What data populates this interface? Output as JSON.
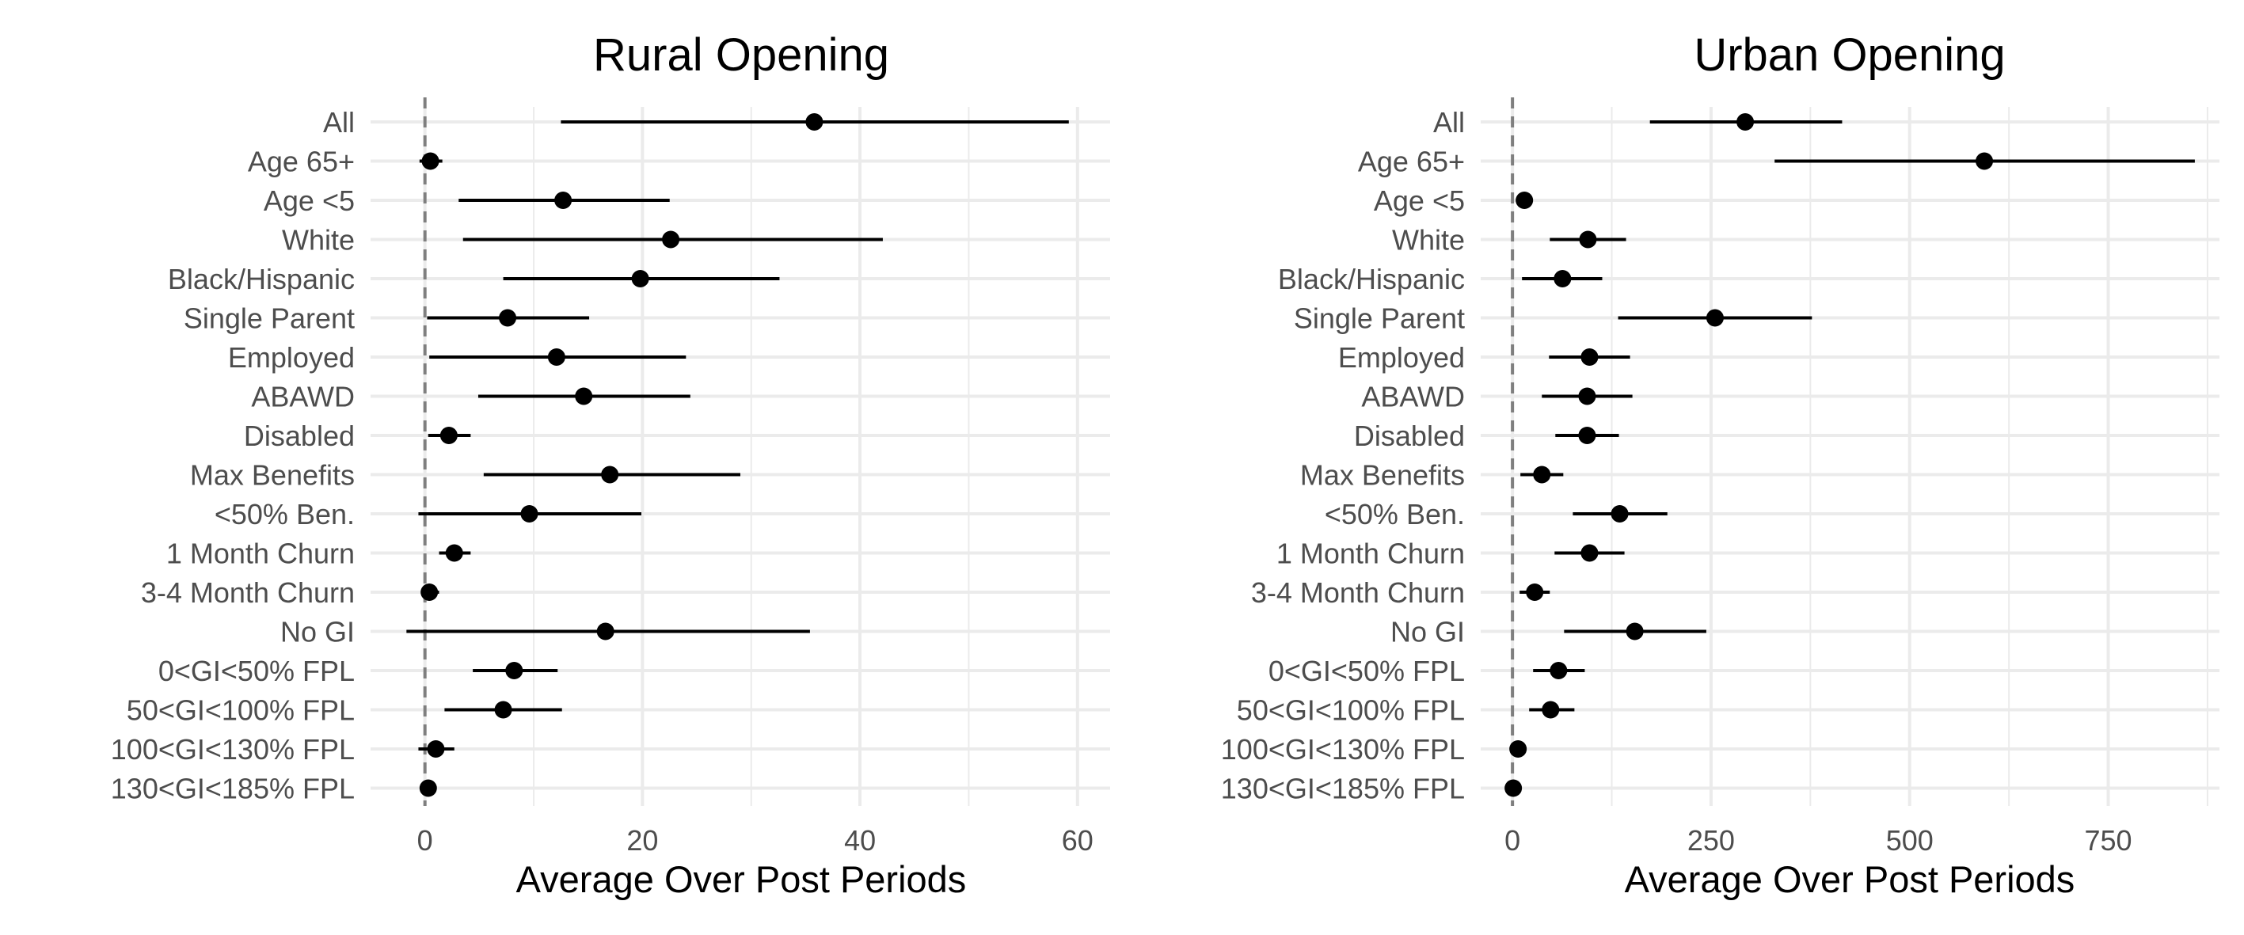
{
  "chart_data": [
    {
      "type": "scatter",
      "subtype": "point-range",
      "title": "Rural Opening",
      "xlabel": "Average Over Post Periods",
      "ylabel": "",
      "xlim": [
        -5,
        63
      ],
      "xticks": [
        0,
        20,
        40,
        60
      ],
      "xtick_labels": [
        "0",
        "20",
        "40",
        "60"
      ],
      "reference_line": {
        "x": 0,
        "style": "dashed"
      },
      "grid": true,
      "categories": [
        "All",
        "Age 65+",
        "Age <5",
        "White",
        "Black/Hispanic",
        "Single Parent",
        "Employed",
        "ABAWD",
        "Disabled",
        "Max Benefits",
        "<50% Ben.",
        "1 Month Churn",
        "3-4 Month Churn",
        "No GI",
        "0<GI<50% FPL",
        "50<GI<100% FPL",
        "100<GI<130% FPL",
        "130<GI<185% FPL"
      ],
      "values": [
        35.8,
        0.5,
        12.7,
        22.6,
        19.8,
        7.6,
        12.1,
        14.6,
        2.2,
        17.0,
        9.6,
        2.7,
        0.4,
        16.6,
        8.2,
        7.2,
        1.0,
        0.3
      ],
      "lower": [
        12.5,
        -0.5,
        3.1,
        3.5,
        7.2,
        0.2,
        0.4,
        4.9,
        0.3,
        5.4,
        -0.6,
        1.3,
        -0.3,
        -1.7,
        4.4,
        1.8,
        -0.6,
        0.0
      ],
      "upper": [
        59.2,
        1.6,
        22.5,
        42.1,
        32.6,
        15.1,
        24.0,
        24.4,
        4.2,
        29.0,
        19.9,
        4.2,
        1.3,
        35.4,
        12.2,
        12.6,
        2.7,
        0.6
      ]
    },
    {
      "type": "scatter",
      "subtype": "point-range",
      "title": "Urban Opening",
      "xlabel": "Average Over Post Periods",
      "ylabel": "",
      "xlim": [
        -40,
        890
      ],
      "xticks": [
        0,
        250,
        500,
        750
      ],
      "xtick_labels": [
        "0",
        "250",
        "500",
        "750"
      ],
      "reference_line": {
        "x": 0,
        "style": "dashed"
      },
      "grid": true,
      "categories": [
        "All",
        "Age 65+",
        "Age <5",
        "White",
        "Black/Hispanic",
        "Single Parent",
        "Employed",
        "ABAWD",
        "Disabled",
        "Max Benefits",
        "<50% Ben.",
        "1 Month Churn",
        "3-4 Month Churn",
        "No GI",
        "0<GI<50% FPL",
        "50<GI<100% FPL",
        "100<GI<130% FPL",
        "130<GI<185% FPL"
      ],
      "values": [
        293,
        594,
        15,
        95,
        63,
        255,
        97,
        94,
        94,
        37,
        135,
        97,
        28,
        154,
        58,
        48,
        7,
        1
      ],
      "lower": [
        173,
        330,
        6,
        47,
        12,
        133,
        46,
        37,
        54,
        10,
        76,
        53,
        9,
        65,
        26,
        21,
        2,
        0
      ],
      "upper": [
        415,
        859,
        24,
        143,
        113,
        377,
        148,
        151,
        134,
        64,
        195,
        141,
        47,
        244,
        91,
        78,
        12,
        2
      ]
    }
  ]
}
